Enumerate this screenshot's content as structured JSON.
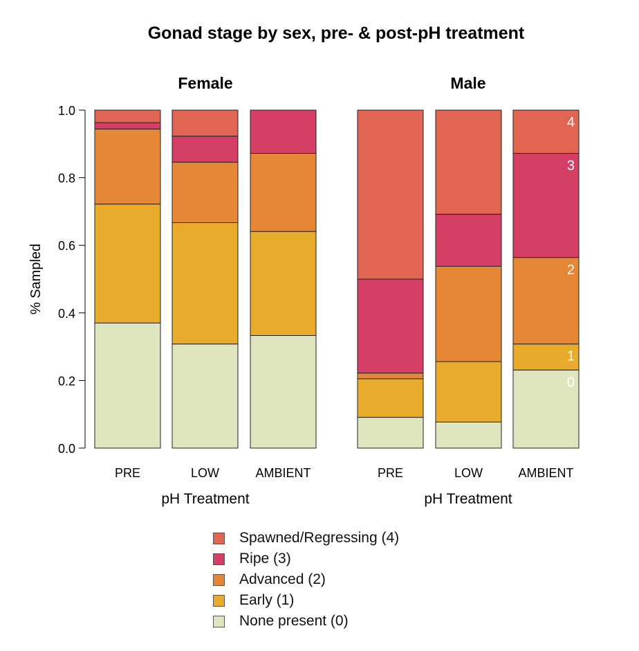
{
  "chart_data": {
    "type": "bar",
    "stacked": true,
    "title": "Gonad stage by sex, pre- & post-pH treatment",
    "ylabel": "% Sampled",
    "ylim": [
      0,
      1
    ],
    "yticks": [
      "0.0",
      "0.2",
      "0.4",
      "0.6",
      "0.8",
      "1.0"
    ],
    "legend_position": "bottom",
    "stages": [
      {
        "name": "None present (0)",
        "code": "0",
        "color": "#dfe6bf"
      },
      {
        "name": "Early (1)",
        "code": "1",
        "color": "#e9ab2b"
      },
      {
        "name": "Advanced (2)",
        "code": "2",
        "color": "#e68735"
      },
      {
        "name": "Ripe (3)",
        "code": "3",
        "color": "#d53e65"
      },
      {
        "name": "Spawned/Regressing (4)",
        "code": "4",
        "color": "#e06653"
      }
    ],
    "panels": [
      {
        "title": "Female",
        "xlabel": "pH Treatment",
        "categories": [
          "PRE",
          "LOW",
          "AMBIENT"
        ],
        "values": [
          [
            0.37,
            0.352,
            0.222,
            0.019,
            0.037
          ],
          [
            0.308,
            0.359,
            0.179,
            0.077,
            0.077
          ],
          [
            0.333,
            0.308,
            0.231,
            0.128,
            0.0
          ]
        ]
      },
      {
        "title": "Male",
        "xlabel": "pH Treatment",
        "categories": [
          "PRE",
          "LOW",
          "AMBIENT"
        ],
        "values": [
          [
            0.091,
            0.114,
            0.017,
            0.278,
            0.5
          ],
          [
            0.077,
            0.179,
            0.282,
            0.154,
            0.308
          ],
          [
            0.231,
            0.077,
            0.256,
            0.308,
            0.128
          ]
        ],
        "stage_labels": [
          "0",
          "1",
          "2",
          "3",
          "4"
        ]
      }
    ]
  }
}
